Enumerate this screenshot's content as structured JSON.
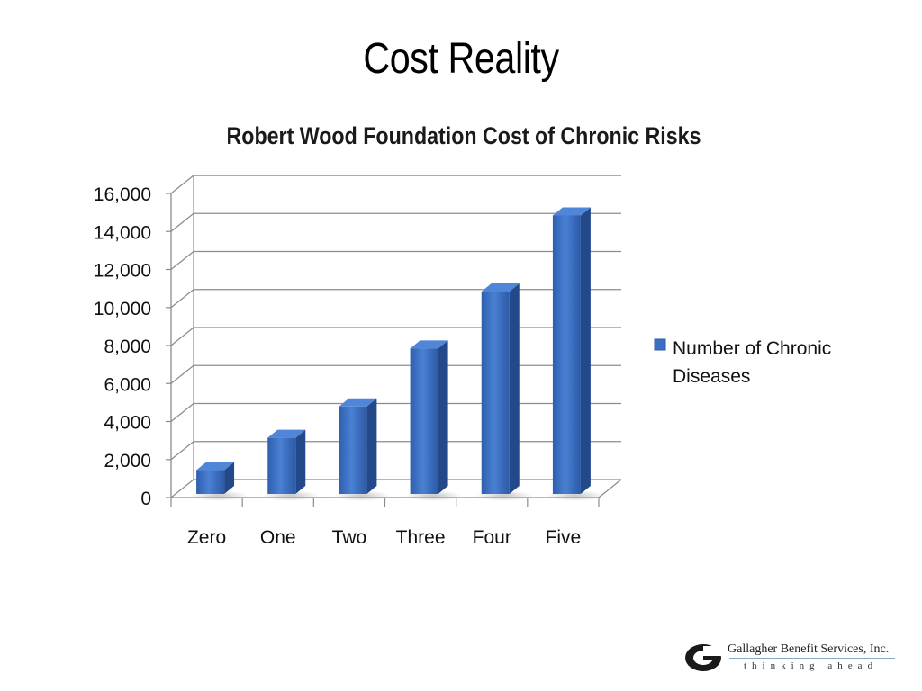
{
  "slide": {
    "title": "Cost Reality"
  },
  "chart_data": {
    "type": "bar",
    "title": "Robert Wood Foundation Cost of Chronic Risks",
    "categories": [
      "Zero",
      "One",
      "Two",
      "Three",
      "Four",
      "Five"
    ],
    "series": [
      {
        "name": "Number of Chronic Diseases",
        "values": [
          1300,
          3000,
          4650,
          7700,
          10700,
          14700
        ]
      }
    ],
    "ylim": [
      0,
      16000
    ],
    "yticks": [
      "0",
      "2,000",
      "4,000",
      "6,000",
      "8,000",
      "10,000",
      "12,000",
      "14,000",
      "16,000"
    ],
    "grid": true,
    "legend": "right",
    "legend_lines": [
      "Number of Chronic",
      "Diseases"
    ],
    "bar_color": "#3a6fc4"
  },
  "logo": {
    "name": "Gallagher Benefit Services, Inc.",
    "tagline": "thinking ahead",
    "icon": "gallagher-g-logo-icon"
  }
}
